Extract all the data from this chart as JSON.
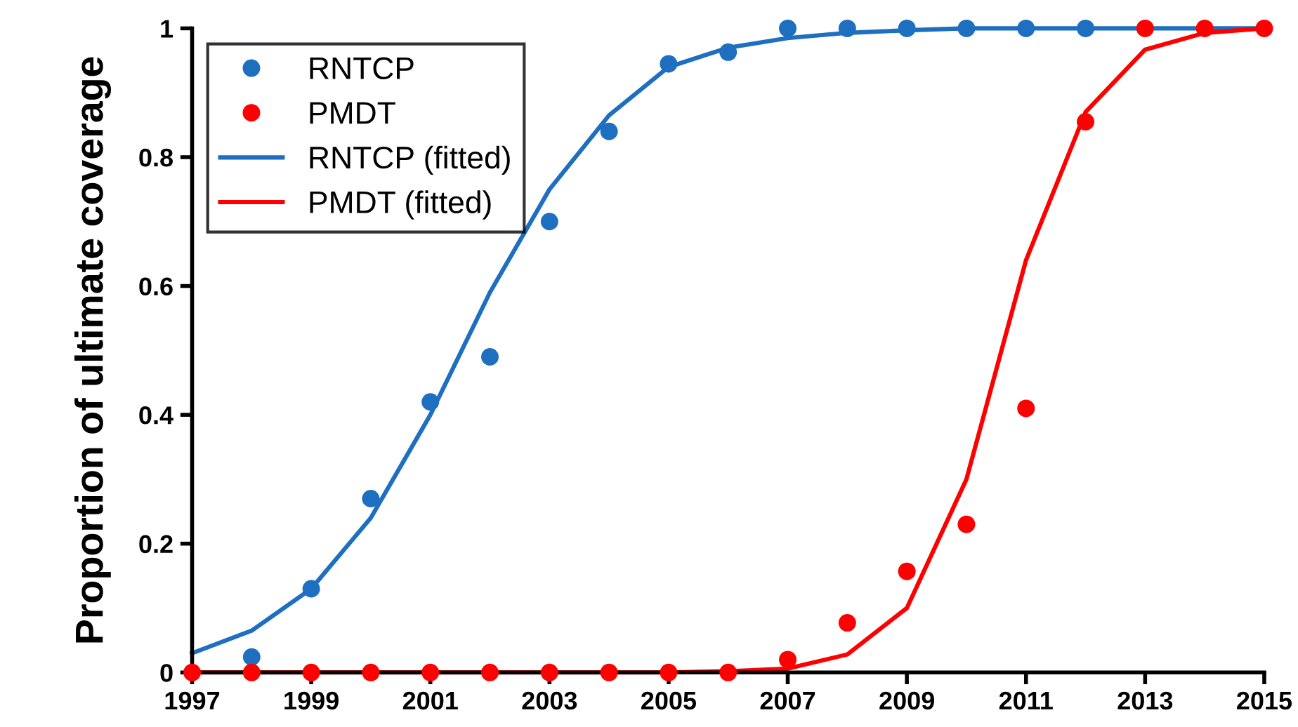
{
  "chart_data": {
    "type": "line",
    "ylabel": "Proportion of ultimate coverage",
    "x": [
      1997,
      1998,
      1999,
      2000,
      2001,
      2002,
      2003,
      2004,
      2005,
      2006,
      2007,
      2008,
      2009,
      2010,
      2011,
      2012,
      2013,
      2014,
      2015
    ],
    "series": [
      {
        "name": "RNTCP",
        "type": "scatter",
        "marker": "circle",
        "color": "#1f6fc0",
        "values": [
          null,
          0.024,
          0.13,
          0.27,
          0.42,
          0.49,
          0.7,
          0.84,
          0.945,
          0.963,
          1,
          1,
          1,
          1,
          1,
          1,
          null,
          null,
          null
        ]
      },
      {
        "name": "PMDT",
        "type": "scatter",
        "marker": "circle",
        "color": "#ff0000",
        "values": [
          0,
          0,
          0,
          0,
          0,
          0,
          0,
          0,
          0,
          0,
          0.02,
          0.077,
          0.157,
          0.23,
          0.41,
          0.855,
          1,
          1,
          1
        ]
      },
      {
        "name": "RNTCP (fitted)",
        "color": "#1f6fc0",
        "values": [
          0.03,
          0.065,
          0.13,
          0.24,
          0.4,
          0.59,
          0.75,
          0.865,
          0.94,
          0.97,
          0.985,
          0.993,
          0.997,
          1,
          1,
          1,
          1,
          1,
          1
        ]
      },
      {
        "name": "PMDT (fitted)",
        "color": "#ff0000",
        "values": [
          0,
          0,
          0,
          0,
          0,
          0,
          0,
          0,
          0,
          0.002,
          0.006,
          0.028,
          0.1,
          0.3,
          0.64,
          0.87,
          0.967,
          0.993,
          1
        ]
      }
    ],
    "xlim": [
      1997,
      2015
    ],
    "xticks": [
      1997,
      1999,
      2001,
      2003,
      2005,
      2007,
      2009,
      2011,
      2013,
      2015
    ],
    "ylim": [
      0,
      1
    ],
    "yticks": [
      0,
      0.2,
      0.4,
      0.6,
      0.8,
      1
    ],
    "grid": false,
    "legend": "top left"
  }
}
